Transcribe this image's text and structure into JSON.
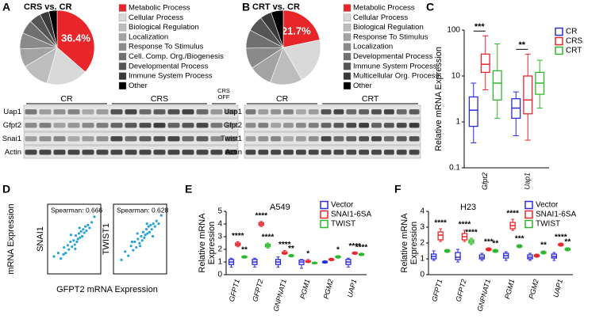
{
  "panels": [
    "A",
    "B",
    "C",
    "D",
    "E",
    "F"
  ],
  "panel_d": {
    "y_label": "mRNA Expression",
    "x_label": "GFPT2 mRNA Expression"
  },
  "blots": [
    {
      "groups": [
        {
          "lines": [
            "CR"
          ]
        },
        {
          "lines": [
            "CRS"
          ]
        },
        {
          "lines": [
            "CRS",
            "OFF"
          ]
        }
      ],
      "rows": [
        "Uap1",
        "Gfpt2",
        "Snai1",
        "Actin"
      ]
    },
    {
      "groups": [
        {
          "lines": [
            "CR"
          ]
        },
        {
          "lines": [
            "CRT"
          ]
        }
      ],
      "rows": [
        "Uap1",
        "Gfpt2",
        "Twist1",
        "Actin"
      ]
    }
  ],
  "chart_data": [
    {
      "type": "pie",
      "title": "CRS vs. CR",
      "categories": [
        "Metabolic Process",
        "Cellular Process",
        "Biological Regulation",
        "Localization",
        "Response To Stimulus",
        "Cell. Comp. Org./Biogenesis",
        "Developmental Process",
        "Immune System Process",
        "Other"
      ],
      "values": [
        36.4,
        18,
        12,
        8,
        7,
        6,
        5,
        4,
        3.6
      ],
      "value_labels": [
        "36.4%",
        null,
        null,
        null,
        null,
        null,
        null,
        null,
        null
      ],
      "colors": [
        "#e8262a",
        "#d9d9d9",
        "#bdbdbd",
        "#a3a3a3",
        "#8a8a8a",
        "#707070",
        "#555555",
        "#3a3a3a",
        "#000000"
      ]
    },
    {
      "type": "pie",
      "title": "CRT vs. CR",
      "categories": [
        "Metabolic Process",
        "Cellular Process",
        "Biological Regulation",
        "Response To Stimulus",
        "Localization",
        "Developmental Process",
        "Immune System Process",
        "Multicellular Org. Process",
        "Other"
      ],
      "values": [
        21.7,
        20,
        14,
        10,
        9,
        8,
        7,
        5,
        5.3
      ],
      "value_labels": [
        "21.7%",
        null,
        null,
        null,
        null,
        null,
        null,
        null,
        null
      ],
      "colors": [
        "#e8262a",
        "#d9d9d9",
        "#bdbdbd",
        "#a3a3a3",
        "#8a8a8a",
        "#707070",
        "#555555",
        "#3a3a3a",
        "#000000"
      ]
    },
    {
      "type": "box",
      "y_label_lines": [
        "Relative mRNA Expression"
      ],
      "log_scale": true,
      "brackets": true,
      "categories": [
        "Gfpt2",
        "Uap1"
      ],
      "ylim": [
        0.1,
        100
      ],
      "yticks": [
        0.1,
        1,
        10,
        100
      ],
      "series": [
        {
          "name": "CR",
          "color": "#2b2bd9",
          "min": [
            0.35,
            0.5
          ],
          "q1": [
            0.8,
            1.2
          ],
          "median": [
            1.8,
            2
          ],
          "q3": [
            3.5,
            3.2
          ],
          "max": [
            7,
            4.5
          ]
        },
        {
          "name": "CRS",
          "color": "#e8262a",
          "min": [
            5,
            0.4
          ],
          "q1": [
            12,
            1.5
          ],
          "median": [
            18,
            3
          ],
          "q3": [
            30,
            10
          ],
          "max": [
            75,
            30
          ],
          "significance": [
            "***",
            "**"
          ]
        },
        {
          "name": "CRT",
          "color": "#2db82d",
          "min": [
            1.2,
            2
          ],
          "q1": [
            3,
            4
          ],
          "median": [
            7,
            7
          ],
          "q3": [
            13,
            12
          ],
          "max": [
            50,
            22
          ]
        }
      ]
    },
    {
      "type": "scatter",
      "y_label": "SNAI1",
      "annotation": "Spearman: 0.666",
      "color": "#29a3d4",
      "xlim": [
        0,
        10
      ],
      "ylim": [
        0,
        10
      ],
      "x": [
        1.2,
        2.0,
        2.5,
        3.1,
        3.4,
        3.8,
        4.0,
        4.3,
        4.6,
        4.9,
        5.1,
        5.3,
        5.5,
        5.7,
        5.9,
        6.1,
        6.3,
        6.5,
        6.7,
        6.9,
        7.1,
        7.3,
        7.6,
        7.9,
        8.3,
        8.8,
        5.2,
        4.4,
        6.0,
        3.0
      ],
      "y": [
        2.5,
        3.0,
        2.2,
        3.8,
        3.0,
        4.1,
        3.5,
        4.6,
        3.9,
        4.8,
        4.2,
        5.5,
        4.6,
        5.0,
        5.8,
        5.2,
        6.1,
        5.4,
        6.4,
        5.9,
        6.8,
        6.2,
        7.0,
        6.6,
        7.4,
        8.2,
        3.6,
        5.6,
        6.6,
        2.8
      ]
    },
    {
      "type": "scatter",
      "y_label": "TWIST1",
      "annotation": "Spearman: 0.628",
      "color": "#29a3d4",
      "xlim": [
        0,
        10
      ],
      "ylim": [
        0,
        10
      ],
      "x": [
        1.5,
        2.2,
        2.8,
        3.3,
        3.7,
        4.0,
        4.3,
        4.6,
        4.9,
        5.2,
        5.4,
        5.6,
        5.8,
        6.0,
        6.2,
        6.4,
        6.6,
        6.8,
        7.0,
        7.2,
        7.5,
        7.8,
        8.1,
        8.5,
        9.0,
        5.0,
        4.5,
        6.3,
        3.5,
        7.4
      ],
      "y": [
        2.0,
        3.2,
        2.6,
        4.0,
        3.4,
        4.6,
        3.8,
        5.0,
        4.4,
        5.4,
        4.8,
        6.0,
        5.2,
        5.6,
        6.4,
        5.8,
        6.8,
        6.0,
        7.0,
        6.4,
        7.2,
        6.8,
        7.6,
        7.2,
        8.4,
        4.0,
        5.8,
        7.2,
        4.6,
        5.4
      ]
    },
    {
      "type": "box",
      "title": "A549",
      "y_label_lines": [
        "Relative mRNA",
        "Expression"
      ],
      "categories": [
        "GFPT1",
        "GFPT2",
        "GNPNAT1",
        "PGM1",
        "PGM2",
        "UAP1"
      ],
      "ylim": [
        0,
        5
      ],
      "yticks": [
        0,
        1,
        2,
        3,
        4,
        5
      ],
      "series": [
        {
          "name": "Vector",
          "color": "#2b2bd9",
          "min": [
            0.6,
            0.6,
            0.6,
            0.5,
            0.9,
            0.6
          ],
          "q1": [
            0.8,
            0.8,
            0.8,
            0.8,
            0.95,
            0.8
          ],
          "median": [
            1,
            1,
            1,
            1,
            1,
            1
          ],
          "q3": [
            1.2,
            1.2,
            1.2,
            1.15,
            1.05,
            1.2
          ],
          "max": [
            1.3,
            1.3,
            1.4,
            1.2,
            1.1,
            1.3
          ]
        },
        {
          "name": "SNAI1-6SA",
          "color": "#e8262a",
          "min": [
            2.2,
            3.8,
            1.6,
            0.95,
            1.1,
            1.6
          ],
          "q1": [
            2.3,
            3.9,
            1.65,
            1,
            1.15,
            1.65
          ],
          "median": [
            2.4,
            4,
            1.7,
            1.05,
            1.2,
            1.7
          ],
          "q3": [
            2.5,
            4.1,
            1.8,
            1.1,
            1.25,
            1.75
          ],
          "max": [
            2.6,
            4.2,
            1.9,
            1.2,
            1.3,
            1.8
          ],
          "significance": [
            "****",
            "****",
            "****",
            "*",
            null,
            "****"
          ]
        },
        {
          "name": "TWIST",
          "color": "#2db82d",
          "min": [
            1.3,
            2.1,
            1.4,
            0.85,
            1.3,
            1.5
          ],
          "q1": [
            1.35,
            2.2,
            1.45,
            0.88,
            1.35,
            1.55
          ],
          "median": [
            1.4,
            2.3,
            1.5,
            0.9,
            1.4,
            1.6
          ],
          "q3": [
            1.45,
            2.4,
            1.55,
            0.95,
            1.45,
            1.65
          ],
          "max": [
            1.5,
            2.5,
            1.6,
            1,
            1.5,
            1.7
          ],
          "significance": [
            "**",
            "****",
            "**",
            null,
            "*",
            "****"
          ]
        }
      ]
    },
    {
      "type": "box",
      "title": "H23",
      "y_label_lines": [
        "Relative mRNA",
        "Expression"
      ],
      "categories": [
        "GFPT1",
        "GFPT2",
        "GNPNAT1",
        "PGM1",
        "PGM2",
        "UAP1"
      ],
      "ylim": [
        0,
        4
      ],
      "yticks": [
        0,
        1,
        2,
        3,
        4
      ],
      "series": [
        {
          "name": "Vector",
          "color": "#2b2bd9",
          "min": [
            0.9,
            0.8,
            0.9,
            0.9,
            0.9,
            0.9
          ],
          "q1": [
            1,
            0.95,
            1,
            1.05,
            1,
            1.05
          ],
          "median": [
            1.15,
            1.1,
            1.1,
            1.2,
            1.1,
            1.15
          ],
          "q3": [
            1.3,
            1.4,
            1.25,
            1.35,
            1.25,
            1.3
          ],
          "max": [
            1.5,
            1.6,
            1.35,
            1.45,
            1.35,
            1.4
          ]
        },
        {
          "name": "SNAI1-6SA",
          "color": "#e8262a",
          "min": [
            2.1,
            2.1,
            1.5,
            2.8,
            1.1,
            1.8
          ],
          "q1": [
            2.2,
            2.2,
            1.55,
            2.9,
            1.15,
            1.85
          ],
          "median": [
            2.5,
            2.4,
            1.6,
            3.1,
            1.2,
            1.9
          ],
          "q3": [
            2.7,
            2.6,
            1.65,
            3.3,
            1.25,
            1.95
          ],
          "max": [
            2.9,
            2.8,
            1.7,
            3.5,
            1.3,
            2
          ],
          "significance": [
            "****",
            "****",
            "***",
            "****",
            null,
            "****"
          ]
        },
        {
          "name": "TWIST",
          "color": "#2db82d",
          "min": [
            1.4,
            1.9,
            1.4,
            1.7,
            1.3,
            1.5
          ],
          "q1": [
            1.45,
            2,
            1.45,
            1.75,
            1.35,
            1.55
          ],
          "median": [
            1.5,
            2.1,
            1.5,
            1.8,
            1.4,
            1.6
          ],
          "q3": [
            1.55,
            2.2,
            1.55,
            1.85,
            1.45,
            1.65
          ],
          "max": [
            1.6,
            2.3,
            1.6,
            1.9,
            1.5,
            1.7
          ],
          "significance": [
            null,
            "****",
            "**",
            "***",
            "**",
            "**"
          ]
        }
      ]
    }
  ]
}
